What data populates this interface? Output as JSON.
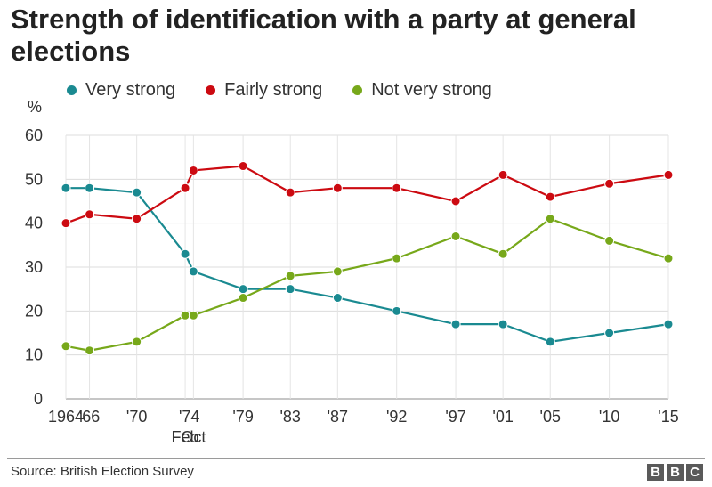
{
  "chart_data": {
    "type": "line",
    "title": "Strength of identification with a party at general elections",
    "ylabel": "%",
    "ylim": [
      0,
      60
    ],
    "yticks": [
      0,
      10,
      20,
      30,
      40,
      50,
      60
    ],
    "grid": true,
    "legend_position": "top",
    "x": [
      1964,
      1966,
      1970,
      1974.1,
      1974.8,
      1979,
      1983,
      1987,
      1992,
      1997,
      2001,
      2005,
      2010,
      2015
    ],
    "xticks": [
      {
        "x": 1964,
        "label": "1964"
      },
      {
        "x": 1966,
        "label": "'66"
      },
      {
        "x": 1970,
        "label": "'70"
      },
      {
        "x": 1974.45,
        "label": "'74"
      },
      {
        "x": 1979,
        "label": "'79"
      },
      {
        "x": 1983,
        "label": "'83"
      },
      {
        "x": 1987,
        "label": "'87"
      },
      {
        "x": 1992,
        "label": "'92"
      },
      {
        "x": 1997,
        "label": "'97"
      },
      {
        "x": 2001,
        "label": "'01"
      },
      {
        "x": 2005,
        "label": "'05"
      },
      {
        "x": 2010,
        "label": "'10"
      },
      {
        "x": 2015,
        "label": "'15"
      }
    ],
    "sublabels": [
      {
        "x": 1974.1,
        "label": "Feb"
      },
      {
        "x": 1974.8,
        "label": "Oct"
      }
    ],
    "series": [
      {
        "name": "Very strong",
        "color": "#1a8a91",
        "values": [
          48,
          48,
          47,
          33,
          29,
          25,
          25,
          23,
          20,
          17,
          17,
          13,
          15,
          17
        ]
      },
      {
        "name": "Fairly strong",
        "color": "#cc0a11",
        "values": [
          40,
          42,
          41,
          48,
          52,
          53,
          47,
          48,
          48,
          45,
          51,
          46,
          49,
          51
        ]
      },
      {
        "name": "Not very strong",
        "color": "#77a81a",
        "values": [
          12,
          11,
          13,
          19,
          19,
          23,
          28,
          29,
          32,
          37,
          33,
          41,
          36,
          32
        ]
      }
    ]
  },
  "footer": {
    "source": "Source: British Election Survey",
    "logo_letters": [
      "B",
      "B",
      "C"
    ]
  }
}
